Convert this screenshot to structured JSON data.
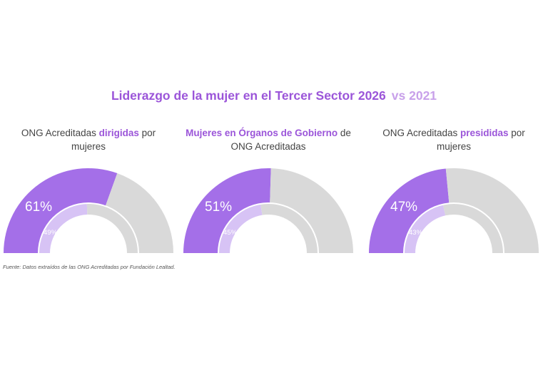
{
  "title": {
    "main": "Liderazgo de la mujer en el Tercer Sector 2026",
    "compare": "vs 2021"
  },
  "colors": {
    "current": "#a46fe8",
    "previous": "#d7c3f5",
    "remainder": "#d9d9d9",
    "title": "#9b55d9",
    "compare": "#c8a0ea"
  },
  "gauges": [
    {
      "caption_pre": "ONG Acreditadas ",
      "caption_highlight": "dirigidas",
      "caption_post": " por mujeres",
      "value_2026_label": "61%",
      "value_2021_label": "49%"
    },
    {
      "caption_pre": "",
      "caption_highlight": "Mujeres en  Órganos de Gobierno",
      "caption_post": " de ONG Acreditadas",
      "value_2026_label": "51%",
      "value_2021_label": "45%"
    },
    {
      "caption_pre": "ONG Acreditadas ",
      "caption_highlight": "presididas",
      "caption_post": " por mujeres",
      "value_2026_label": "47%",
      "value_2021_label": "43%"
    }
  ],
  "chart_data": {
    "type": "gauge",
    "title": "Liderazgo de la mujer en el Tercer Sector 2026 vs 2021",
    "series": [
      {
        "name": "2026",
        "values": [
          61,
          51,
          47
        ]
      },
      {
        "name": "2021",
        "values": [
          49,
          45,
          43
        ]
      }
    ],
    "categories": [
      "ONG Acreditadas dirigidas por mujeres",
      "Mujeres en Órganos de Gobierno de ONG Acreditadas",
      "ONG Acreditadas presididas por mujeres"
    ],
    "ylim": [
      0,
      100
    ]
  },
  "source": "Fuente: Datos extraídos de las ONG Acreditadas por Fundación Lealtad."
}
